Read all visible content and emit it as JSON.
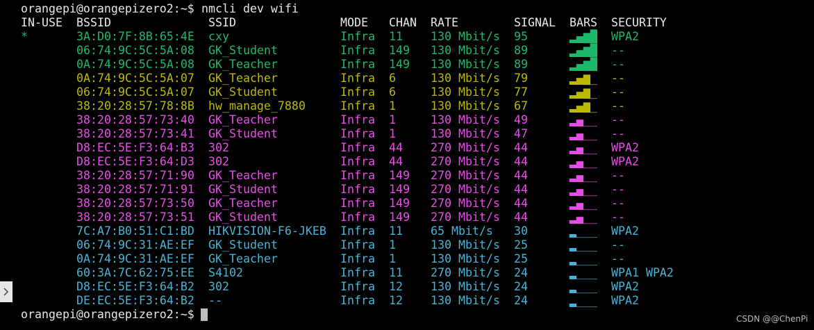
{
  "prompts": [
    "orangepi@orangepizero2:~$",
    "orangepi@orangepizero2:~$"
  ],
  "command": "nmcli dev wifi",
  "header": [
    "IN-USE",
    "BSSID",
    "SSID",
    "MODE",
    "CHAN",
    "RATE",
    "SIGNAL",
    "BARS",
    "SECURITY"
  ],
  "colors": {
    "green": "#1fb86a",
    "yellow": "#bdb800",
    "magenta": "#e94ce9",
    "cyan": "#45b4d6"
  },
  "rows": [
    {
      "in_use": "*",
      "bssid": "3A:D0:7F:8B:65:4E",
      "ssid": "cxy",
      "mode": "Infra",
      "chan": "11",
      "rate": "130 Mbit/s",
      "signal": "95",
      "bars": "▂▄▆█",
      "security": "WPA2",
      "color": "green"
    },
    {
      "bssid": "06:74:9C:5C:5A:08",
      "ssid": "GK_Student",
      "mode": "Infra",
      "chan": "149",
      "rate": "130 Mbit/s",
      "signal": "89",
      "bars": "▂▄▆█",
      "security": "--",
      "color": "green"
    },
    {
      "bssid": "0A:74:9C:5C:5A:08",
      "ssid": "GK_Teacher",
      "mode": "Infra",
      "chan": "149",
      "rate": "130 Mbit/s",
      "signal": "89",
      "bars": "▂▄▆█",
      "security": "--",
      "color": "green"
    },
    {
      "bssid": "0A:74:9C:5C:5A:07",
      "ssid": "GK_Teacher",
      "mode": "Infra",
      "chan": "6",
      "rate": "130 Mbit/s",
      "signal": "79",
      "bars": "▂▄▆_",
      "security": "--",
      "color": "yellow"
    },
    {
      "bssid": "06:74:9C:5C:5A:07",
      "ssid": "GK_Student",
      "mode": "Infra",
      "chan": "6",
      "rate": "130 Mbit/s",
      "signal": "77",
      "bars": "▂▄▆_",
      "security": "--",
      "color": "yellow"
    },
    {
      "bssid": "38:20:28:57:78:8B",
      "ssid": "hw_manage_7880",
      "mode": "Infra",
      "chan": "1",
      "rate": "130 Mbit/s",
      "signal": "67",
      "bars": "▂▄▆_",
      "security": "--",
      "color": "yellow"
    },
    {
      "bssid": "38:20:28:57:73:40",
      "ssid": "GK_Teacher",
      "mode": "Infra",
      "chan": "1",
      "rate": "130 Mbit/s",
      "signal": "49",
      "bars": "▂▄__",
      "security": "--",
      "color": "magenta"
    },
    {
      "bssid": "38:20:28:57:73:41",
      "ssid": "GK_Student",
      "mode": "Infra",
      "chan": "1",
      "rate": "130 Mbit/s",
      "signal": "47",
      "bars": "▂▄__",
      "security": "--",
      "color": "magenta"
    },
    {
      "bssid": "D8:EC:5E:F3:64:B3",
      "ssid": "302",
      "mode": "Infra",
      "chan": "44",
      "rate": "270 Mbit/s",
      "signal": "44",
      "bars": "▂▄__",
      "security": "WPA2",
      "color": "magenta"
    },
    {
      "bssid": "D8:EC:5E:F3:64:D3",
      "ssid": "302",
      "mode": "Infra",
      "chan": "44",
      "rate": "270 Mbit/s",
      "signal": "44",
      "bars": "▂▄__",
      "security": "WPA2",
      "color": "magenta"
    },
    {
      "bssid": "38:20:28:57:71:90",
      "ssid": "GK_Teacher",
      "mode": "Infra",
      "chan": "149",
      "rate": "270 Mbit/s",
      "signal": "44",
      "bars": "▂▄__",
      "security": "--",
      "color": "magenta"
    },
    {
      "bssid": "38:20:28:57:71:91",
      "ssid": "GK_Student",
      "mode": "Infra",
      "chan": "149",
      "rate": "270 Mbit/s",
      "signal": "44",
      "bars": "▂▄__",
      "security": "--",
      "color": "magenta"
    },
    {
      "bssid": "38:20:28:57:73:50",
      "ssid": "GK_Teacher",
      "mode": "Infra",
      "chan": "149",
      "rate": "270 Mbit/s",
      "signal": "44",
      "bars": "▂▄__",
      "security": "--",
      "color": "magenta"
    },
    {
      "bssid": "38:20:28:57:73:51",
      "ssid": "GK_Student",
      "mode": "Infra",
      "chan": "149",
      "rate": "270 Mbit/s",
      "signal": "44",
      "bars": "▂▄__",
      "security": "--",
      "color": "magenta"
    },
    {
      "bssid": "7C:A7:B0:51:C1:BD",
      "ssid": "HIKVISION-F6-JKEB",
      "mode": "Infra",
      "chan": "11",
      "rate": "65 Mbit/s",
      "signal": "30",
      "bars": "▂___",
      "security": "WPA2",
      "color": "cyan"
    },
    {
      "bssid": "06:74:9C:31:AE:EF",
      "ssid": "GK_Student",
      "mode": "Infra",
      "chan": "1",
      "rate": "130 Mbit/s",
      "signal": "25",
      "bars": "▂___",
      "security": "--",
      "color": "cyan"
    },
    {
      "bssid": "0A:74:9C:31:AE:EF",
      "ssid": "GK_Teacher",
      "mode": "Infra",
      "chan": "1",
      "rate": "130 Mbit/s",
      "signal": "25",
      "bars": "▂___",
      "security": "--",
      "color": "cyan"
    },
    {
      "bssid": "60:3A:7C:62:75:EE",
      "ssid": "S4102",
      "mode": "Infra",
      "chan": "11",
      "rate": "270 Mbit/s",
      "signal": "24",
      "bars": "▂___",
      "security": "WPA1 WPA2",
      "color": "cyan"
    },
    {
      "bssid": "D8:EC:5E:F3:64:B2",
      "ssid": "302",
      "mode": "Infra",
      "chan": "12",
      "rate": "130 Mbit/s",
      "signal": "24",
      "bars": "▂___",
      "security": "WPA2",
      "color": "cyan"
    },
    {
      "bssid": "DE:EC:5E:F3:64:B2",
      "ssid": "--",
      "mode": "Infra",
      "chan": "12",
      "rate": "130 Mbit/s",
      "signal": "24",
      "bars": "▂___",
      "security": "WPA2",
      "color": "cyan"
    }
  ],
  "watermark": "CSDN @@ChenPi"
}
